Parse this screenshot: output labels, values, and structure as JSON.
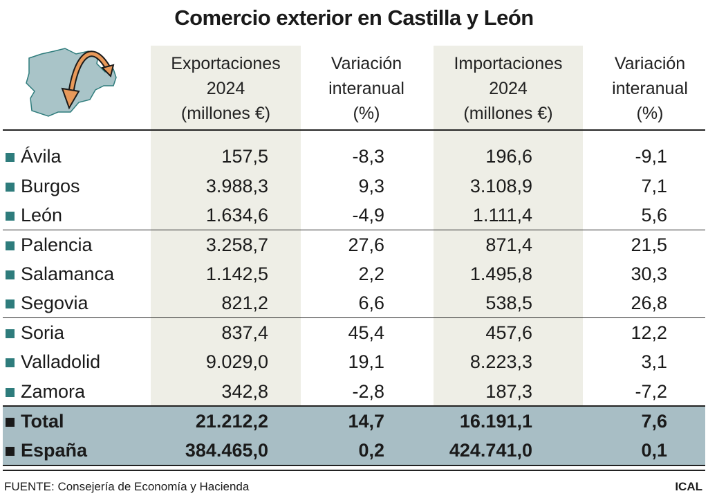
{
  "title": "Comercio exterior en Castilla y León",
  "colors": {
    "shade": "#eeeee6",
    "band": "#a8bec5",
    "bullet": "#2e7c7c",
    "map": "#a9c4c8",
    "arrow": "#e8995a"
  },
  "icon": "castilla-leon-map-arrows-icon",
  "headers": [
    [
      "Exportaciones",
      "2024",
      "(millones €)"
    ],
    [
      "Variación",
      "interanual",
      "(%)"
    ],
    [
      "Importaciones",
      "2024",
      "(millones €)"
    ],
    [
      "Variación",
      "interanual",
      "(%)"
    ]
  ],
  "chart_data": {
    "type": "table",
    "title": "Comercio exterior en Castilla y León",
    "columns": [
      "Exportaciones 2024 (millones €)",
      "Variación interanual (%)",
      "Importaciones 2024 (millones €)",
      "Variación interanual (%)"
    ],
    "rows": [
      {
        "name": "Ávila",
        "values": [
          "157,5",
          "-8,3",
          "196,6",
          "-9,1"
        ]
      },
      {
        "name": "Burgos",
        "values": [
          "3.988,3",
          "9,3",
          "3.108,9",
          "7,1"
        ]
      },
      {
        "name": "León",
        "values": [
          "1.634,6",
          "-4,9",
          "1.111,4",
          "5,6"
        ]
      },
      {
        "name": "Palencia",
        "values": [
          "3.258,7",
          "27,6",
          "871,4",
          "21,5"
        ]
      },
      {
        "name": "Salamanca",
        "values": [
          "1.142,5",
          "2,2",
          "1.495,8",
          "30,3"
        ]
      },
      {
        "name": "Segovia",
        "values": [
          "821,2",
          "6,6",
          "538,5",
          "26,8"
        ]
      },
      {
        "name": "Soria",
        "values": [
          "837,4",
          "45,4",
          "457,6",
          "12,2"
        ]
      },
      {
        "name": "Valladolid",
        "values": [
          "9.029,0",
          "19,1",
          "8.223,3",
          "3,1"
        ]
      },
      {
        "name": "Zamora",
        "values": [
          "342,8",
          "-2,8",
          "187,3",
          "-7,2"
        ]
      }
    ],
    "totals": [
      {
        "name": "Total",
        "values": [
          "21.212,2",
          "14,7",
          "16.191,1",
          "7,6"
        ]
      },
      {
        "name": "España",
        "values": [
          "384.465,0",
          "0,2",
          "424.741,0",
          "0,1"
        ]
      }
    ]
  },
  "footer": {
    "source": "FUENTE: Consejería de Economía y Hacienda",
    "brand": "ICAL"
  }
}
